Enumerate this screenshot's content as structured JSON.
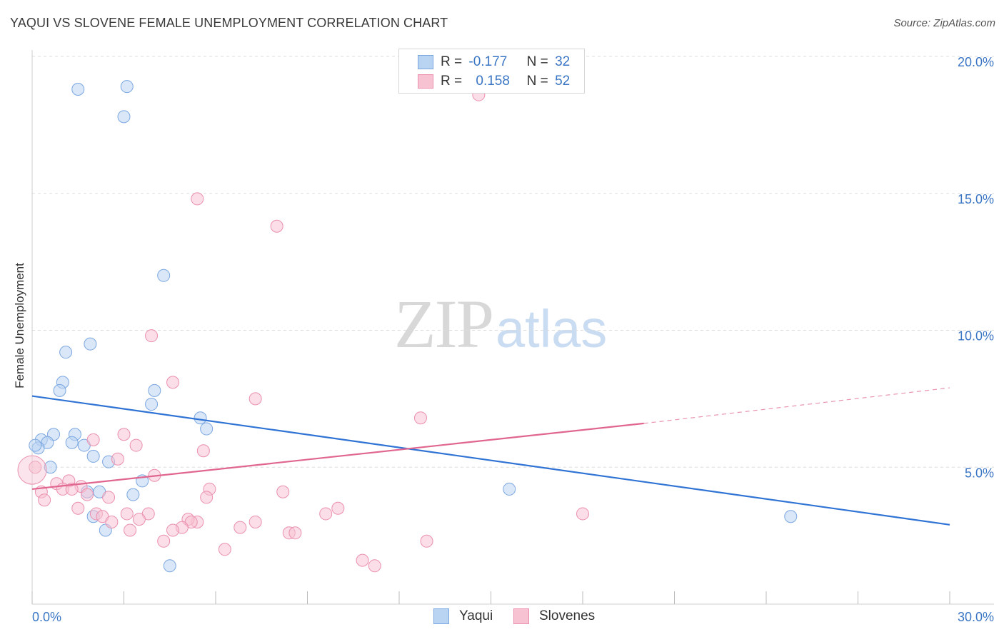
{
  "title": "YAQUI VS SLOVENE FEMALE UNEMPLOYMENT CORRELATION CHART",
  "source": "Source: ZipAtlas.com",
  "watermark": {
    "zip": "ZIP",
    "atlas": "atlas"
  },
  "legend": {
    "r_label": "R =",
    "n_label": "N =",
    "rows": [
      {
        "name": "Yaqui",
        "r": "-0.177",
        "n": "32"
      },
      {
        "name": "Slovenes",
        "r": "0.158",
        "n": "52"
      }
    ]
  },
  "colors": {
    "yaqui_fill": "#b9d3f3",
    "yaqui_stroke": "#7ba7e0",
    "yaqui_line": "#2f73d4",
    "slovenes_fill": "#f7c3d3",
    "slovenes_stroke": "#ea90ae",
    "slovenes_line": "#e0668f",
    "tick_text": "#3b76c4",
    "grid": "#dcdcdc"
  },
  "chart_data": {
    "type": "scatter",
    "title": "YAQUI VS SLOVENE FEMALE UNEMPLOYMENT CORRELATION CHART",
    "xlabel": "",
    "ylabel": "Female Unemployment",
    "xlim": [
      0,
      30
    ],
    "ylim": [
      0,
      20
    ],
    "x_tick_labels": [
      "0.0%",
      "30.0%"
    ],
    "y_ticks": [
      {
        "value": 5,
        "label": "5.0%"
      },
      {
        "value": 10,
        "label": "10.0%"
      },
      {
        "value": 15,
        "label": "15.0%"
      },
      {
        "value": 20,
        "label": "20.0%"
      }
    ],
    "grid": true,
    "series": [
      {
        "name": "Yaqui",
        "points": [
          [
            1.5,
            18.8
          ],
          [
            3.1,
            18.9
          ],
          [
            3.0,
            17.8
          ],
          [
            4.3,
            12.0
          ],
          [
            1.9,
            9.5
          ],
          [
            1.1,
            9.2
          ],
          [
            1.0,
            8.1
          ],
          [
            0.9,
            7.8
          ],
          [
            4.0,
            7.8
          ],
          [
            3.9,
            7.3
          ],
          [
            5.5,
            6.8
          ],
          [
            5.7,
            6.4
          ],
          [
            0.7,
            6.2
          ],
          [
            1.4,
            6.2
          ],
          [
            0.3,
            6.0
          ],
          [
            0.5,
            5.9
          ],
          [
            1.3,
            5.9
          ],
          [
            1.7,
            5.8
          ],
          [
            0.2,
            5.7
          ],
          [
            0.1,
            5.8
          ],
          [
            2.0,
            5.4
          ],
          [
            2.5,
            5.2
          ],
          [
            0.6,
            5.0
          ],
          [
            3.6,
            4.5
          ],
          [
            2.2,
            4.1
          ],
          [
            1.8,
            4.1
          ],
          [
            3.3,
            4.0
          ],
          [
            15.6,
            4.2
          ],
          [
            2.0,
            3.2
          ],
          [
            24.8,
            3.2
          ],
          [
            2.4,
            2.7
          ],
          [
            4.5,
            1.4
          ]
        ],
        "trend": {
          "x": [
            0,
            30
          ],
          "y": [
            7.6,
            2.9
          ]
        }
      },
      {
        "name": "Slovenes",
        "points": [
          [
            14.6,
            18.6
          ],
          [
            5.4,
            14.8
          ],
          [
            8.0,
            13.8
          ],
          [
            3.9,
            9.8
          ],
          [
            4.6,
            8.1
          ],
          [
            7.3,
            7.5
          ],
          [
            12.7,
            6.8
          ],
          [
            3.0,
            6.2
          ],
          [
            2.0,
            6.0
          ],
          [
            3.4,
            5.8
          ],
          [
            5.6,
            5.6
          ],
          [
            2.8,
            5.3
          ],
          [
            0.1,
            5.0
          ],
          [
            4.0,
            4.7
          ],
          [
            1.2,
            4.5
          ],
          [
            0.8,
            4.4
          ],
          [
            1.6,
            4.3
          ],
          [
            5.8,
            4.2
          ],
          [
            1.0,
            4.2
          ],
          [
            1.3,
            4.2
          ],
          [
            0.3,
            4.1
          ],
          [
            8.2,
            4.1
          ],
          [
            1.8,
            4.0
          ],
          [
            2.5,
            3.9
          ],
          [
            5.7,
            3.9
          ],
          [
            0.4,
            3.8
          ],
          [
            1.5,
            3.5
          ],
          [
            10.0,
            3.5
          ],
          [
            9.6,
            3.3
          ],
          [
            3.1,
            3.3
          ],
          [
            3.8,
            3.3
          ],
          [
            2.1,
            3.3
          ],
          [
            2.3,
            3.2
          ],
          [
            3.5,
            3.1
          ],
          [
            2.6,
            3.0
          ],
          [
            5.4,
            3.0
          ],
          [
            5.1,
            3.1
          ],
          [
            7.3,
            3.0
          ],
          [
            5.2,
            3.0
          ],
          [
            4.9,
            2.8
          ],
          [
            6.8,
            2.8
          ],
          [
            18.0,
            3.3
          ],
          [
            4.6,
            2.7
          ],
          [
            3.2,
            2.7
          ],
          [
            8.4,
            2.6
          ],
          [
            8.6,
            2.6
          ],
          [
            4.3,
            2.3
          ],
          [
            12.9,
            2.3
          ],
          [
            6.3,
            2.0
          ],
          [
            10.8,
            1.6
          ],
          [
            11.2,
            1.4
          ],
          [
            0.0,
            4.9
          ]
        ],
        "trend": {
          "x": [
            0,
            20
          ],
          "y": [
            4.2,
            6.6
          ]
        },
        "trend_extrapolated": {
          "x": [
            20,
            30
          ],
          "y": [
            6.6,
            7.9
          ]
        }
      }
    ]
  }
}
